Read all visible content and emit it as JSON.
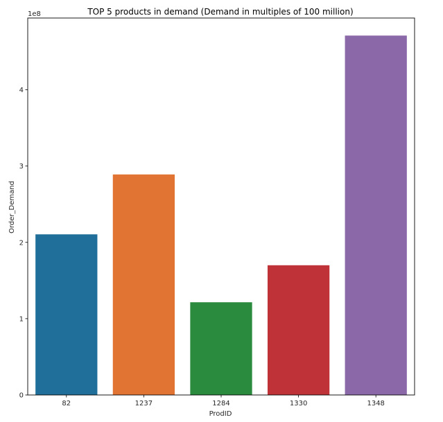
{
  "chart_data": {
    "type": "bar",
    "title": "TOP 5 products in demand (Demand in multiples of 100 million)",
    "xlabel": "ProdID",
    "ylabel": "Order_Demand",
    "offset_label": "1e8",
    "categories": [
      "82",
      "1237",
      "1284",
      "1330",
      "1348"
    ],
    "values": [
      210500000,
      289000000,
      121500000,
      170000000,
      471000000
    ],
    "colors": [
      "#1f6f9a",
      "#e27433",
      "#2a8a3e",
      "#bf3238",
      "#8b69a9"
    ],
    "ylim": [
      0,
      494000000
    ],
    "yticks": [
      0,
      100000000,
      200000000,
      300000000,
      400000000
    ],
    "ytick_labels": [
      "0",
      "1",
      "2",
      "3",
      "4"
    ],
    "grid": false,
    "legend": "none"
  }
}
